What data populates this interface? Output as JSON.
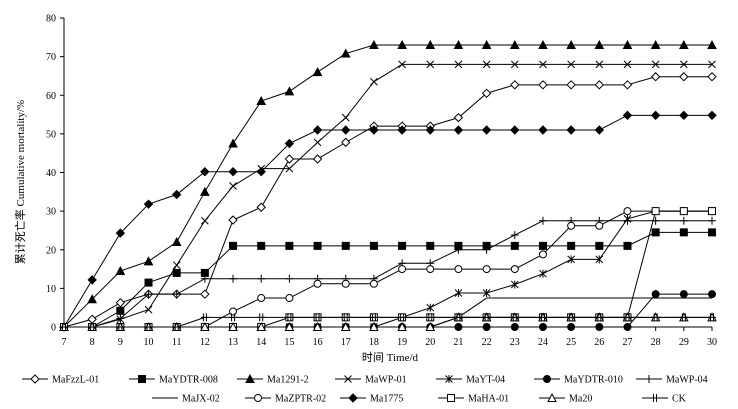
{
  "chart_data": {
    "type": "line",
    "xlabel": "时间 Time/d",
    "ylabel": "累计死亡率 Cumulative mortality/%",
    "xlim": [
      7,
      30
    ],
    "ylim": [
      0,
      80
    ],
    "x": [
      7,
      8,
      9,
      10,
      11,
      12,
      13,
      14,
      15,
      16,
      17,
      18,
      19,
      20,
      21,
      22,
      23,
      24,
      25,
      26,
      27,
      28,
      29,
      30
    ],
    "x_ticks": [
      "7",
      "8",
      "9",
      "10",
      "11",
      "12",
      "13",
      "14",
      "15",
      "16",
      "17",
      "18",
      "19",
      "20",
      "21",
      "22",
      "23",
      "24",
      "25",
      "26",
      "27",
      "28",
      "29",
      "30"
    ],
    "y_ticks": [
      "0",
      "10",
      "20",
      "30",
      "40",
      "50",
      "60",
      "70",
      "80"
    ],
    "grid": false,
    "legend_position": "bottom",
    "series": [
      {
        "name": "MaFzzL-01",
        "marker": "diamond-open",
        "values": [
          0,
          2,
          6.3,
          8.5,
          8.5,
          8.5,
          27.7,
          31,
          43.5,
          43.5,
          47.8,
          52,
          52,
          52,
          54.2,
          60.5,
          62.7,
          62.7,
          62.7,
          62.7,
          62.7,
          64.8,
          64.8,
          64.8
        ]
      },
      {
        "name": "MaYDTR-008",
        "marker": "square-filled",
        "values": [
          0,
          0,
          4.2,
          11.5,
          14,
          14,
          21,
          21,
          21,
          21,
          21,
          21,
          21,
          21,
          21,
          21,
          21,
          21,
          21,
          21,
          21,
          24.5,
          24.5,
          24.5
        ]
      },
      {
        "name": "Ma1291-2",
        "marker": "triangle-filled",
        "values": [
          0,
          7.2,
          14.5,
          17,
          22,
          35,
          47.5,
          58.5,
          61,
          66,
          70.8,
          73,
          73,
          73,
          73,
          73,
          73,
          73,
          73,
          73,
          73,
          73,
          73,
          73
        ]
      },
      {
        "name": "MaWP-01",
        "marker": "x",
        "values": [
          0,
          0,
          2,
          4.5,
          16,
          27.5,
          36.5,
          41,
          41,
          47.8,
          54.2,
          63.5,
          68,
          68,
          68,
          68,
          68,
          68,
          68,
          68,
          68,
          68,
          68,
          68
        ]
      },
      {
        "name": "MaYT-04",
        "marker": "asterisk",
        "values": [
          0,
          0,
          0,
          0,
          0,
          0,
          0,
          0,
          0,
          0,
          0,
          0,
          2.5,
          5,
          8.8,
          8.8,
          11,
          13.8,
          17.5,
          17.5,
          28,
          30,
          30,
          30
        ]
      },
      {
        "name": "MaYDTR-010",
        "marker": "circle-filled",
        "values": [
          0,
          0,
          0,
          0,
          0,
          0,
          0,
          0,
          0,
          0,
          0,
          0,
          0,
          0,
          0,
          0,
          0,
          0,
          0,
          0,
          0,
          8.5,
          8.5,
          8.5
        ]
      },
      {
        "name": "MaWP-04",
        "marker": "plus",
        "values": [
          0,
          0,
          2.2,
          8.5,
          8.5,
          12.5,
          12.5,
          12.5,
          12.5,
          12.5,
          12.5,
          12.5,
          16.5,
          16.5,
          20,
          20,
          23.8,
          27.5,
          27.5,
          27.5,
          27.5,
          27.5,
          27.5,
          27.5
        ]
      },
      {
        "name": "MaJX-02",
        "marker": "dash",
        "values": [
          0,
          0,
          0,
          0,
          0,
          0,
          0,
          0,
          0,
          0,
          0,
          0,
          0,
          0,
          2.5,
          7.5,
          7.5,
          7.5,
          7.5,
          7.5,
          7.5,
          7.5,
          7.5,
          7.5
        ]
      },
      {
        "name": "MaZPTR-02",
        "marker": "circle-open",
        "values": [
          0,
          0,
          0,
          0,
          0,
          0,
          4,
          7.5,
          7.5,
          11.2,
          11.2,
          11.2,
          15,
          15,
          15,
          15,
          15,
          18.8,
          26.2,
          26.2,
          30,
          30,
          30,
          30
        ]
      },
      {
        "name": "Ma1775",
        "marker": "diamond-filled",
        "values": [
          0,
          12.2,
          24.3,
          31.8,
          34.3,
          40.2,
          40.2,
          40.2,
          47.5,
          51,
          51,
          51,
          51,
          51,
          51,
          51,
          51,
          51,
          51,
          51,
          54.8,
          54.8,
          54.8,
          54.8
        ]
      },
      {
        "name": "MaHA-01",
        "marker": "square-open",
        "values": [
          0,
          0,
          0,
          0,
          0,
          0,
          0,
          0,
          2.5,
          2.5,
          2.5,
          2.5,
          2.5,
          2.5,
          2.5,
          2.5,
          2.5,
          2.5,
          2.5,
          2.5,
          2.5,
          30,
          30,
          30
        ]
      },
      {
        "name": "Ma20",
        "marker": "triangle-open",
        "values": [
          0,
          0,
          0,
          0,
          0,
          0,
          0,
          0,
          0,
          0,
          0,
          0,
          0,
          0,
          2.5,
          2.5,
          2.5,
          2.5,
          2.5,
          2.5,
          2.5,
          2.5,
          2.5,
          2.5
        ]
      },
      {
        "name": "CK",
        "marker": "double-plus",
        "values": [
          0,
          0,
          0,
          0,
          0,
          2.5,
          2.5,
          2.5,
          2.5,
          2.5,
          2.5,
          2.5,
          2.5,
          2.5,
          2.5,
          2.5,
          2.5,
          2.5,
          2.5,
          2.5,
          2.5,
          2.5,
          2.5,
          2.5
        ]
      }
    ]
  }
}
